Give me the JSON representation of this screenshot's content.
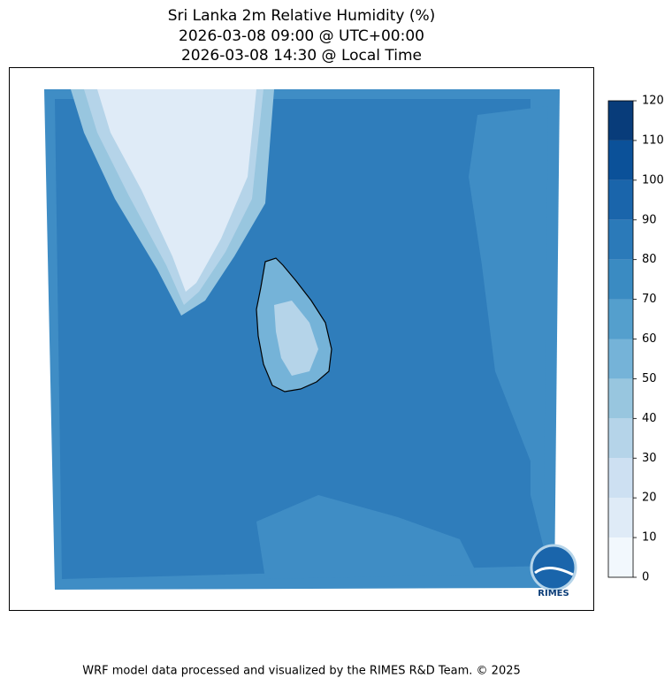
{
  "title": [
    "Sri Lanka 2m Relative Humidity (%)",
    "2026-03-08 09:00 @ UTC+00:00",
    "2026-03-08 14:30 @ Local Time"
  ],
  "colorbar": {
    "lim": [
      0,
      120
    ],
    "ticks": [
      0,
      10,
      20,
      30,
      40,
      50,
      60,
      70,
      80,
      90,
      100,
      110,
      120
    ],
    "colors": [
      "#f2f8fd",
      "#dfebf7",
      "#cde0f2",
      "#b5d4e9",
      "#98c6df",
      "#75b3d8",
      "#549fcd",
      "#3a8bc2",
      "#2b7ab9",
      "#1a65ab",
      "#0b5199",
      "#083c7a"
    ]
  },
  "logo": {
    "text": "RIMES"
  },
  "footer": "WRF model data processed and visualized by the RIMES R&D Team. © 2025"
}
